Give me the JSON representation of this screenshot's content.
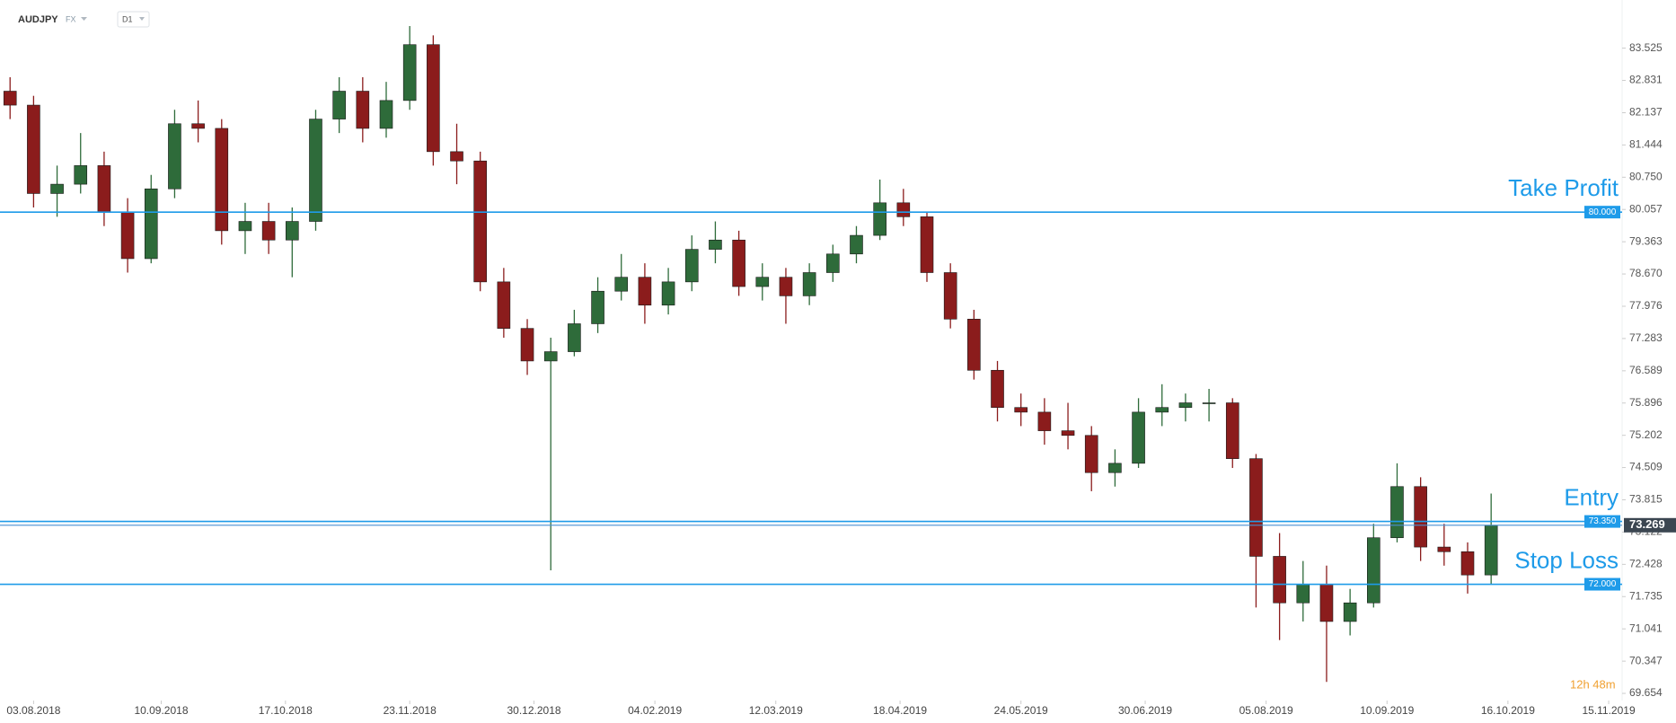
{
  "chart_data": {
    "type": "candlestick",
    "symbol": "AUDJPY",
    "market": "FX",
    "interval": "D1",
    "timer": "12h 48m",
    "x": [
      "27.07.2018",
      "03.08.2018",
      "10.08.2018",
      "17.08.2018",
      "24.08.2018",
      "31.08.2018",
      "07.09.2018",
      "14.09.2018",
      "21.09.2018",
      "28.09.2018",
      "05.10.2018",
      "12.10.2018",
      "19.10.2018",
      "26.10.2018",
      "02.11.2018",
      "09.11.2018",
      "16.11.2018",
      "23.11.2018",
      "30.11.2018",
      "07.12.2018",
      "14.12.2018",
      "21.12.2018",
      "28.12.2018",
      "04.01.2019",
      "11.01.2019",
      "18.01.2019",
      "25.01.2019",
      "01.02.2019",
      "08.02.2019",
      "15.02.2019",
      "22.02.2019",
      "01.03.2019",
      "08.03.2019",
      "15.03.2019",
      "22.03.2019",
      "29.03.2019",
      "05.04.2019",
      "12.04.2019",
      "19.04.2019",
      "26.04.2019",
      "03.05.2019",
      "10.05.2019",
      "17.05.2019",
      "24.05.2019",
      "31.05.2019",
      "07.06.2019",
      "14.06.2019",
      "21.06.2019",
      "28.06.2019",
      "05.07.2019",
      "12.07.2019",
      "19.07.2019",
      "26.07.2019",
      "02.08.2019",
      "09.08.2019",
      "16.08.2019",
      "23.08.2019",
      "30.08.2019",
      "06.09.2019",
      "13.09.2019",
      "20.09.2019",
      "27.09.2019",
      "04.10.2019",
      "11.10.2019"
    ],
    "open": [
      82.6,
      82.3,
      80.4,
      80.6,
      81.0,
      80.0,
      79.0,
      80.5,
      81.9,
      81.8,
      79.6,
      79.8,
      79.4,
      79.8,
      82.0,
      82.6,
      81.8,
      82.4,
      83.6,
      81.3,
      81.1,
      78.5,
      77.5,
      76.8,
      77.0,
      77.6,
      78.3,
      78.6,
      78.0,
      78.5,
      79.2,
      79.4,
      78.4,
      78.6,
      78.2,
      78.7,
      79.1,
      79.5,
      80.2,
      79.9,
      78.7,
      77.7,
      76.6,
      75.8,
      75.7,
      75.3,
      75.2,
      74.4,
      74.6,
      75.7,
      75.8,
      75.9,
      75.9,
      74.7,
      72.6,
      71.6,
      72.0,
      71.2,
      71.6,
      73.0,
      74.1,
      72.8,
      72.7,
      72.2
    ],
    "high": [
      82.9,
      82.5,
      81.0,
      81.7,
      81.3,
      80.3,
      80.8,
      82.2,
      82.4,
      82.0,
      80.2,
      80.2,
      80.1,
      82.2,
      82.9,
      82.9,
      82.8,
      84.0,
      83.8,
      81.9,
      81.3,
      78.8,
      77.7,
      77.3,
      77.9,
      78.6,
      79.1,
      78.9,
      78.8,
      79.5,
      79.8,
      79.6,
      78.9,
      78.8,
      78.9,
      79.3,
      79.7,
      80.7,
      80.5,
      80.0,
      78.9,
      77.9,
      76.8,
      76.1,
      76.0,
      75.9,
      75.4,
      74.9,
      76.0,
      76.3,
      76.1,
      76.2,
      76.0,
      74.8,
      73.1,
      72.5,
      72.4,
      71.9,
      73.3,
      74.6,
      74.3,
      73.3,
      72.9,
      73.95
    ],
    "low": [
      82.0,
      80.1,
      79.9,
      80.4,
      79.7,
      78.7,
      78.9,
      80.3,
      81.5,
      79.3,
      79.1,
      79.1,
      78.6,
      79.6,
      81.7,
      81.5,
      81.6,
      82.2,
      81.0,
      80.6,
      78.3,
      77.3,
      76.5,
      72.3,
      76.9,
      77.4,
      78.1,
      77.6,
      77.8,
      78.3,
      78.9,
      78.2,
      78.1,
      77.6,
      78.0,
      78.5,
      78.9,
      79.4,
      79.7,
      78.5,
      77.5,
      76.4,
      75.5,
      75.4,
      75.0,
      74.9,
      74.0,
      74.1,
      74.5,
      75.4,
      75.5,
      75.5,
      74.5,
      71.5,
      70.8,
      71.2,
      69.9,
      70.9,
      71.5,
      72.9,
      72.5,
      72.4,
      71.8,
      72.0
    ],
    "close": [
      82.3,
      80.4,
      80.6,
      81.0,
      80.0,
      79.0,
      80.5,
      81.9,
      81.8,
      79.6,
      79.8,
      79.4,
      79.8,
      82.0,
      82.6,
      81.8,
      82.4,
      83.6,
      81.3,
      81.1,
      78.5,
      77.5,
      76.8,
      77.0,
      77.6,
      78.3,
      78.6,
      78.0,
      78.5,
      79.2,
      79.4,
      78.4,
      78.6,
      78.2,
      78.7,
      79.1,
      79.5,
      80.2,
      79.9,
      78.7,
      77.7,
      76.6,
      75.8,
      75.7,
      75.3,
      75.2,
      74.4,
      74.6,
      75.7,
      75.8,
      75.9,
      75.9,
      74.7,
      72.6,
      71.6,
      72.0,
      71.2,
      71.6,
      73.0,
      74.1,
      72.8,
      72.7,
      72.2,
      73.269
    ],
    "up_color": "#2e6b3a",
    "down_color": "#8b1c1c",
    "xlim": [
      "24.07.2018",
      "19.11.2019"
    ],
    "xticks": [
      "03.08.2018",
      "10.09.2018",
      "17.10.2018",
      "23.11.2018",
      "30.12.2018",
      "04.02.2019",
      "12.03.2019",
      "18.04.2019",
      "24.05.2019",
      "30.06.2019",
      "05.08.2019",
      "10.09.2019",
      "16.10.2019",
      "15.11.2019"
    ],
    "ylim": [
      69.5,
      84.56
    ],
    "yticks": [
      83.525,
      82.831,
      82.137,
      81.444,
      {
        "value": 80.75,
        "label": "80.750"
      },
      80.057,
      79.363,
      {
        "value": 78.67,
        "label": "78.670"
      },
      77.976,
      77.283,
      76.589,
      75.896,
      75.202,
      74.509,
      73.815,
      73.122,
      72.428,
      71.735,
      71.041,
      70.347,
      69.654
    ],
    "levels": [
      {
        "name": "Take Profit",
        "value": 80.0,
        "label": "80.000",
        "color": "#1e9be9"
      },
      {
        "name": "Entry",
        "value": 73.35,
        "label": "73.350",
        "color": "#1e9be9"
      },
      {
        "name": "Stop Loss",
        "value": 72.0,
        "label": "72.000",
        "color": "#1e9be9"
      }
    ],
    "current_price": {
      "value": 73.269,
      "label": "73.269",
      "color": "#3b4651"
    }
  }
}
